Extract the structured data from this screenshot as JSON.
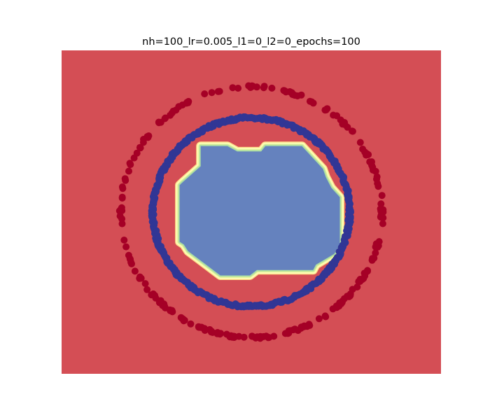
{
  "chart_data": {
    "type": "scatter",
    "title": "nh=100_lr=0.005_l1=0_l2=0_epochs=100",
    "xlabel": "",
    "ylabel": "",
    "xlim": [
      -1.35,
      1.35
    ],
    "ylim": [
      -1.2,
      1.2
    ],
    "axes_visible": false,
    "grid": false,
    "background_region": {
      "class": 0,
      "color": "#d44e55"
    },
    "decision_region": {
      "class": 1,
      "color": "#6582be",
      "boundary_colors": [
        "#fee08b",
        "#ffffbf",
        "#e6f598",
        "#abdda4"
      ],
      "polygon": [
        [
          -0.36,
          0.49
        ],
        [
          -0.17,
          0.49
        ],
        [
          -0.1,
          0.45
        ],
        [
          0.07,
          0.45
        ],
        [
          0.1,
          0.49
        ],
        [
          0.36,
          0.49
        ],
        [
          0.51,
          0.32
        ],
        [
          0.53,
          0.26
        ],
        [
          0.57,
          0.18
        ],
        [
          0.63,
          0.11
        ],
        [
          0.63,
          -0.24
        ],
        [
          0.59,
          -0.31
        ],
        [
          0.46,
          -0.39
        ],
        [
          0.44,
          -0.43
        ],
        [
          0.04,
          -0.43
        ],
        [
          -0.01,
          -0.47
        ],
        [
          -0.22,
          -0.47
        ],
        [
          -0.45,
          -0.29
        ],
        [
          -0.48,
          -0.24
        ],
        [
          -0.51,
          -0.22
        ],
        [
          -0.51,
          0.2
        ],
        [
          -0.49,
          0.22
        ],
        [
          -0.36,
          0.34
        ],
        [
          -0.36,
          0.49
        ]
      ]
    },
    "series": [
      {
        "class": 0,
        "shape": "ring",
        "radius": 0.93,
        "color": "#a50026",
        "distribution": "sparse"
      },
      {
        "class": 1,
        "shape": "ring",
        "radius": 0.7,
        "color": "#313695",
        "distribution": "dense"
      }
    ]
  }
}
